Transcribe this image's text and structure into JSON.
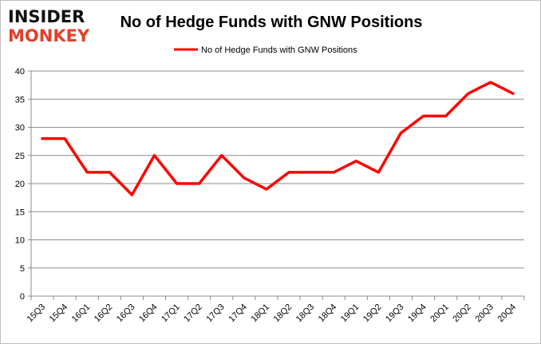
{
  "logo": {
    "line1": "INSIDER",
    "line2": "MONKEY"
  },
  "chart_data": {
    "type": "line",
    "title": "No of Hedge Funds with GNW Positions",
    "xlabel": "",
    "ylabel": "",
    "categories": [
      "15Q3",
      "15Q4",
      "16Q1",
      "16Q2",
      "16Q3",
      "16Q4",
      "17Q1",
      "17Q2",
      "17Q3",
      "17Q4",
      "18Q1",
      "18Q2",
      "18Q3",
      "18Q4",
      "19Q1",
      "19Q2",
      "19Q3",
      "19Q4",
      "20Q1",
      "20Q2",
      "20Q3",
      "20Q4"
    ],
    "series": [
      {
        "name": "No of Hedge Funds with GNW Positions",
        "color": "#ff0000",
        "values": [
          28,
          28,
          22,
          22,
          18,
          25,
          20,
          20,
          25,
          21,
          19,
          22,
          22,
          22,
          24,
          22,
          29,
          32,
          32,
          36,
          38,
          36
        ]
      }
    ],
    "ylim": [
      0,
      40
    ],
    "yticks": [
      0,
      5,
      10,
      15,
      20,
      25,
      30,
      35,
      40
    ],
    "grid": true,
    "legend": "top-center"
  }
}
